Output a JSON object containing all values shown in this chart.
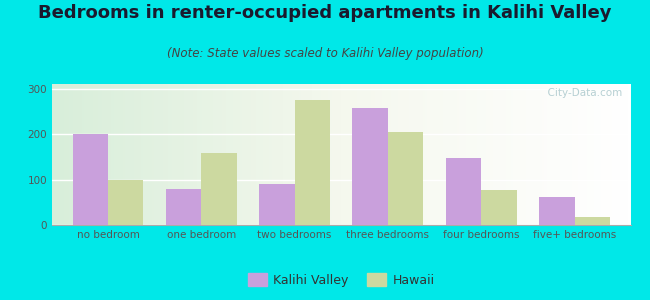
{
  "title": "Bedrooms in renter-occupied apartments in Kalihi Valley",
  "subtitle": "(Note: State values scaled to Kalihi Valley population)",
  "categories": [
    "no bedroom",
    "one bedroom",
    "two bedrooms",
    "three bedrooms",
    "four bedrooms",
    "five+ bedrooms"
  ],
  "kalihi_valley": [
    200,
    80,
    90,
    258,
    148,
    62
  ],
  "hawaii": [
    100,
    158,
    275,
    205,
    78,
    18
  ],
  "kalihi_color": "#c9a0dc",
  "hawaii_color": "#ccd9a0",
  "background_outer": "#00e8e8",
  "ylim": [
    0,
    310
  ],
  "yticks": [
    0,
    100,
    200,
    300
  ],
  "bar_width": 0.38,
  "legend_kalihi": "Kalihi Valley",
  "legend_hawaii": "Hawaii",
  "title_fontsize": 13,
  "subtitle_fontsize": 8.5,
  "tick_fontsize": 7.5,
  "legend_fontsize": 9,
  "title_color": "#1a1a2e",
  "subtitle_color": "#444444",
  "tick_color": "#555555",
  "watermark_color": "#aac8cc"
}
